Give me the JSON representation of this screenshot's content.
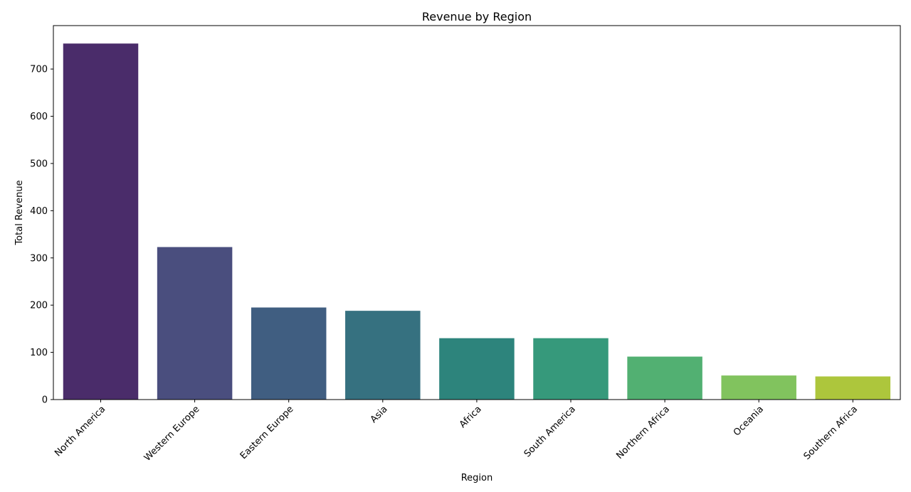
{
  "chart_data": {
    "type": "bar",
    "title": "Revenue by Region",
    "xlabel": "Region",
    "ylabel": "Total Revenue",
    "categories": [
      "North America",
      "Western Europe",
      "Eastern Europe",
      "Asia",
      "Africa",
      "South America",
      "Northern Africa",
      "Oceania",
      "Southern Africa"
    ],
    "values": [
      754,
      323,
      195,
      188,
      130,
      130,
      91,
      51,
      49
    ],
    "colors": [
      "#4a2c6a",
      "#4a4e7e",
      "#405e81",
      "#367180",
      "#2d847c",
      "#36997b",
      "#52b072",
      "#81c35e",
      "#adc63c"
    ],
    "ylim": [
      0,
      792
    ],
    "yticks": [
      0,
      100,
      200,
      300,
      400,
      500,
      600,
      700
    ],
    "grid": false,
    "legend": "none"
  }
}
